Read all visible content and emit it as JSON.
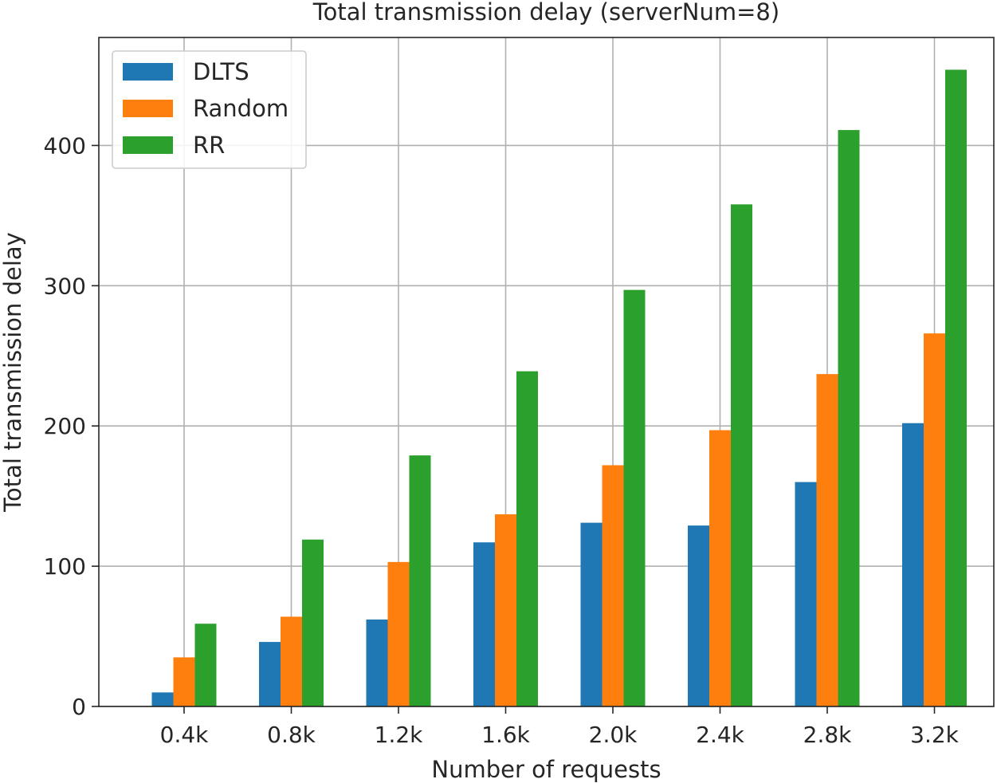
{
  "chart_data": {
    "type": "bar",
    "title": "Total transmission delay (serverNum=8)",
    "xlabel": "Number of requests",
    "ylabel": "Total transmission delay",
    "categories": [
      "0.4k",
      "0.8k",
      "1.2k",
      "1.6k",
      "2.0k",
      "2.4k",
      "2.8k",
      "3.2k"
    ],
    "series": [
      {
        "name": "DLTS",
        "color": "#1f77b4",
        "values": [
          10,
          46,
          62,
          117,
          131,
          129,
          160,
          202
        ]
      },
      {
        "name": "Random",
        "color": "#ff7f0e",
        "values": [
          35,
          64,
          103,
          137,
          172,
          197,
          237,
          266
        ]
      },
      {
        "name": "RR",
        "color": "#2ca02c",
        "values": [
          59,
          119,
          179,
          239,
          297,
          358,
          411,
          454
        ]
      }
    ],
    "ylim": [
      0,
      477
    ],
    "yticks": [
      0,
      100,
      200,
      300,
      400
    ],
    "grid": true,
    "legend": "top-left"
  }
}
